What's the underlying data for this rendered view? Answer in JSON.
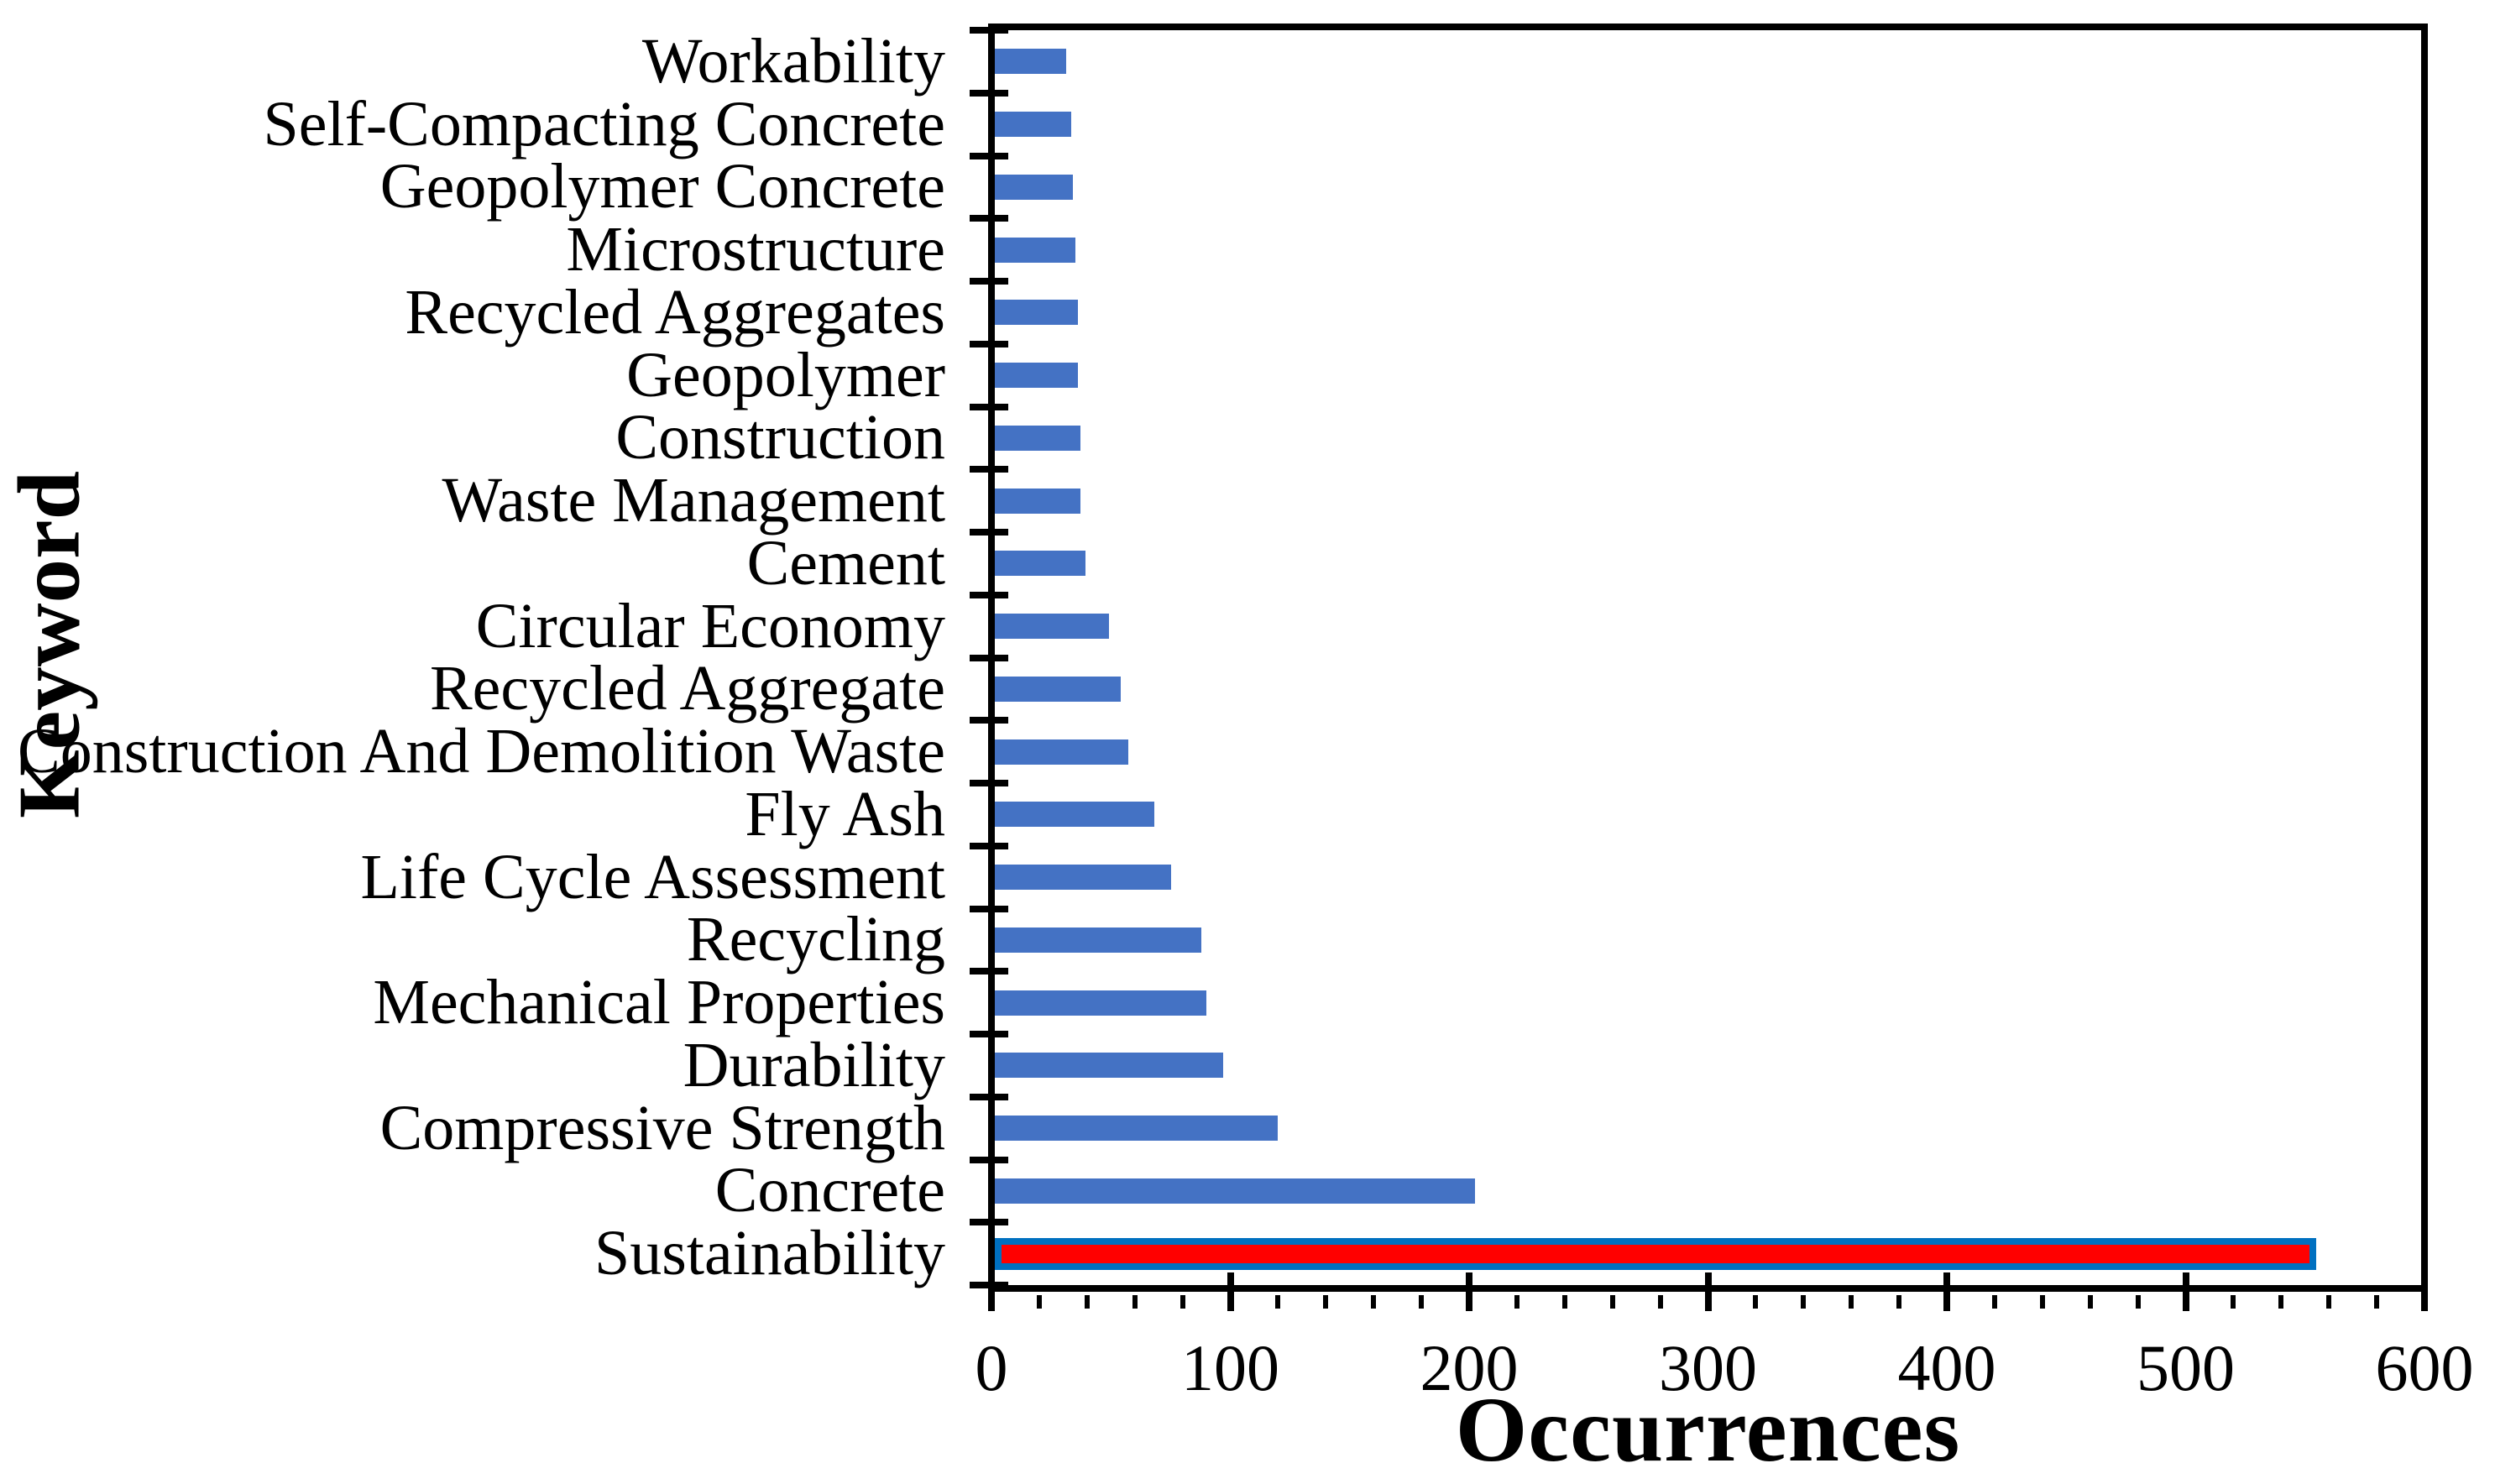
{
  "figure": {
    "background": "#ffffff",
    "text_color": "#000000"
  },
  "chart_data": {
    "type": "bar",
    "orientation": "horizontal",
    "xlabel": "Occurrences",
    "ylabel": "Keyword",
    "xlim": [
      0,
      600
    ],
    "x_major_ticks": [
      0,
      100,
      200,
      300,
      400,
      500,
      600
    ],
    "x_minor_tick_interval": 20,
    "grid": false,
    "legend": false,
    "bar_color": "#4472C4",
    "highlight_fill_color": "#FF0000",
    "highlight_border_color": "#0070C0",
    "highlight_category": "Sustainability",
    "categories": [
      "Workability",
      "Self-Compacting Concrete",
      "Geopolymer Concrete",
      "Microstructure",
      "Recycled Aggregates",
      "Geopolymer",
      "Construction",
      "Waste Management",
      "Cement",
      "Circular Economy",
      "Recycled Aggregate",
      "Construction And Demolition Waste",
      "Fly Ash",
      "Life Cycle Assessment",
      "Recycling",
      "Mechanical Properties",
      "Durability",
      "Compressive Strength",
      "Concrete",
      "Sustainability"
    ],
    "values": [
      30,
      32,
      33,
      34,
      35,
      35,
      36,
      36,
      38,
      48,
      53,
      56,
      67,
      74,
      87,
      89,
      96,
      119,
      202,
      556
    ]
  }
}
